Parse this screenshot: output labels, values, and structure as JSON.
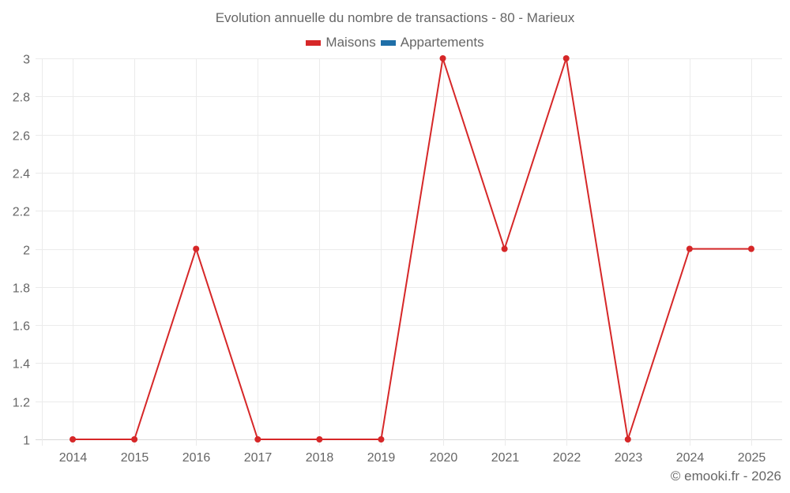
{
  "title": "Evolution annuelle du nombre de transactions - 80 - Marieux",
  "legend": [
    {
      "label": "Maisons",
      "color": "#d62728"
    },
    {
      "label": "Appartements",
      "color": "#1f6fa8"
    }
  ],
  "credit": "© emooki.fr - 2026",
  "chart_data": {
    "type": "line",
    "title": "Evolution annuelle du nombre de transactions - 80 - Marieux",
    "xlabel": "",
    "ylabel": "",
    "categories": [
      "2014",
      "2015",
      "2016",
      "2017",
      "2018",
      "2019",
      "2020",
      "2021",
      "2022",
      "2023",
      "2024",
      "2025"
    ],
    "series": [
      {
        "name": "Maisons",
        "color": "#d62728",
        "values": [
          1,
          1,
          2,
          1,
          1,
          1,
          3,
          2,
          3,
          1,
          2,
          2
        ]
      },
      {
        "name": "Appartements",
        "color": "#1f6fa8",
        "values": []
      }
    ],
    "yticks": [
      "1",
      "1.2",
      "1.4",
      "1.6",
      "1.8",
      "2",
      "2.2",
      "2.4",
      "2.6",
      "2.8",
      "3"
    ],
    "ylim": [
      1,
      3
    ],
    "grid": true,
    "legend_position": "top-center"
  }
}
